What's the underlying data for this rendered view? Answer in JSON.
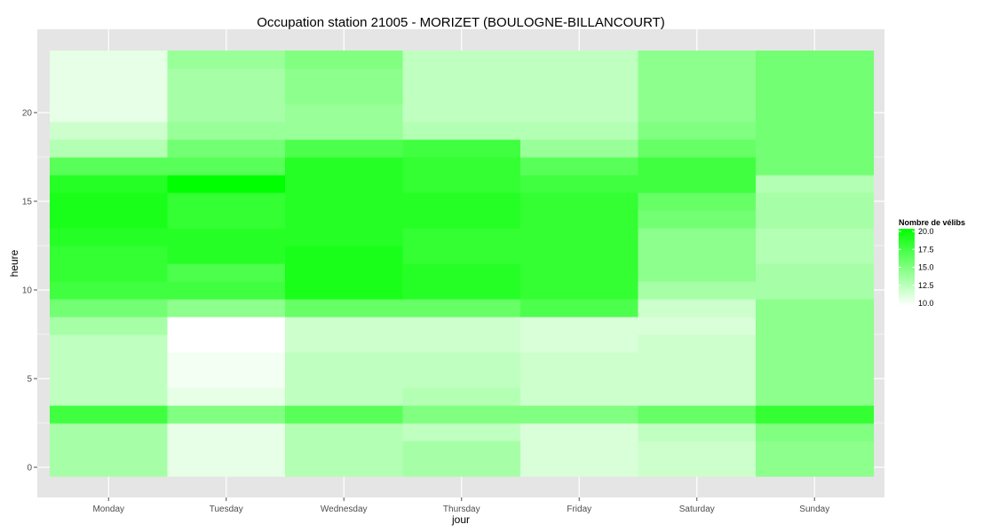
{
  "chart_data": {
    "type": "heatmap",
    "title": "Occupation station 21005 - MORIZET (BOULOGNE-BILLANCOURT)",
    "xlabel": "jour",
    "ylabel": "heure",
    "categories": [
      "Monday",
      "Tuesday",
      "Wednesday",
      "Thursday",
      "Friday",
      "Saturday",
      "Sunday"
    ],
    "y": [
      0,
      1,
      2,
      3,
      4,
      5,
      6,
      7,
      8,
      9,
      10,
      11,
      12,
      13,
      14,
      15,
      16,
      17,
      18,
      19,
      20,
      21,
      22,
      23
    ],
    "yticks": [
      0,
      5,
      10,
      15,
      20
    ],
    "ylim": [
      -0.5,
      23.5
    ],
    "legend": {
      "title": "Nombre de vélibs",
      "ticks": [
        20.0,
        17.5,
        15.0,
        12.5,
        10.0
      ],
      "tick_labels": [
        "20.0",
        "17.5",
        "15.0",
        "12.5",
        "10.0"
      ],
      "range": [
        10,
        20
      ],
      "low_color": "#ffffff",
      "high_color": "#00ff00",
      "position": "right"
    },
    "grid": true,
    "panel_background": "#e5e5e5",
    "grid_color": "#ffffff",
    "values": [
      [
        13.5,
        13.5,
        13.5,
        17.5,
        12.5,
        12.5,
        12.5,
        12.5,
        13.5,
        15.5,
        17.5,
        18,
        18,
        18.5,
        19,
        19,
        18.5,
        16.5,
        13,
        12,
        11,
        11,
        11,
        11
      ],
      [
        11,
        11,
        11,
        15,
        11,
        10.5,
        10.5,
        10,
        10,
        14.5,
        17.5,
        17,
        18.5,
        18.5,
        18,
        18,
        20,
        16.5,
        15.5,
        14,
        13.5,
        13.5,
        13.5,
        14
      ],
      [
        13,
        13,
        13,
        16.5,
        12.5,
        12.5,
        12.5,
        12,
        12,
        16,
        19,
        19,
        19,
        18.5,
        18.5,
        18.5,
        18.5,
        18.5,
        17,
        14,
        14,
        14.5,
        14.5,
        15
      ],
      [
        13.5,
        13.5,
        12.5,
        15,
        13,
        12.5,
        12.5,
        12,
        12,
        16,
        18.5,
        18.5,
        18,
        18,
        18.5,
        18.5,
        18,
        18,
        17.5,
        13,
        12.5,
        12.5,
        12.5,
        12.5
      ],
      [
        11.5,
        11.5,
        11.5,
        15,
        12,
        12,
        12,
        11.5,
        11.5,
        17,
        18,
        18,
        18,
        18,
        18,
        18,
        17.5,
        16.5,
        14,
        13,
        12.5,
        12.5,
        12.5,
        12.5
      ],
      [
        12,
        12,
        12.5,
        16,
        12,
        12,
        12,
        12,
        11.5,
        12,
        13.5,
        14.5,
        14.5,
        14.5,
        15.5,
        16,
        17.5,
        17.5,
        16,
        15,
        14.5,
        14.5,
        14.5,
        14.5
      ],
      [
        14.5,
        14.5,
        15,
        18,
        14.5,
        14.5,
        14.5,
        14.5,
        14.5,
        14.5,
        13.5,
        13.5,
        13,
        13,
        13.5,
        13.5,
        13,
        15.5,
        15.5,
        15.5,
        15.5,
        15.5,
        15.5,
        15.5
      ]
    ]
  }
}
